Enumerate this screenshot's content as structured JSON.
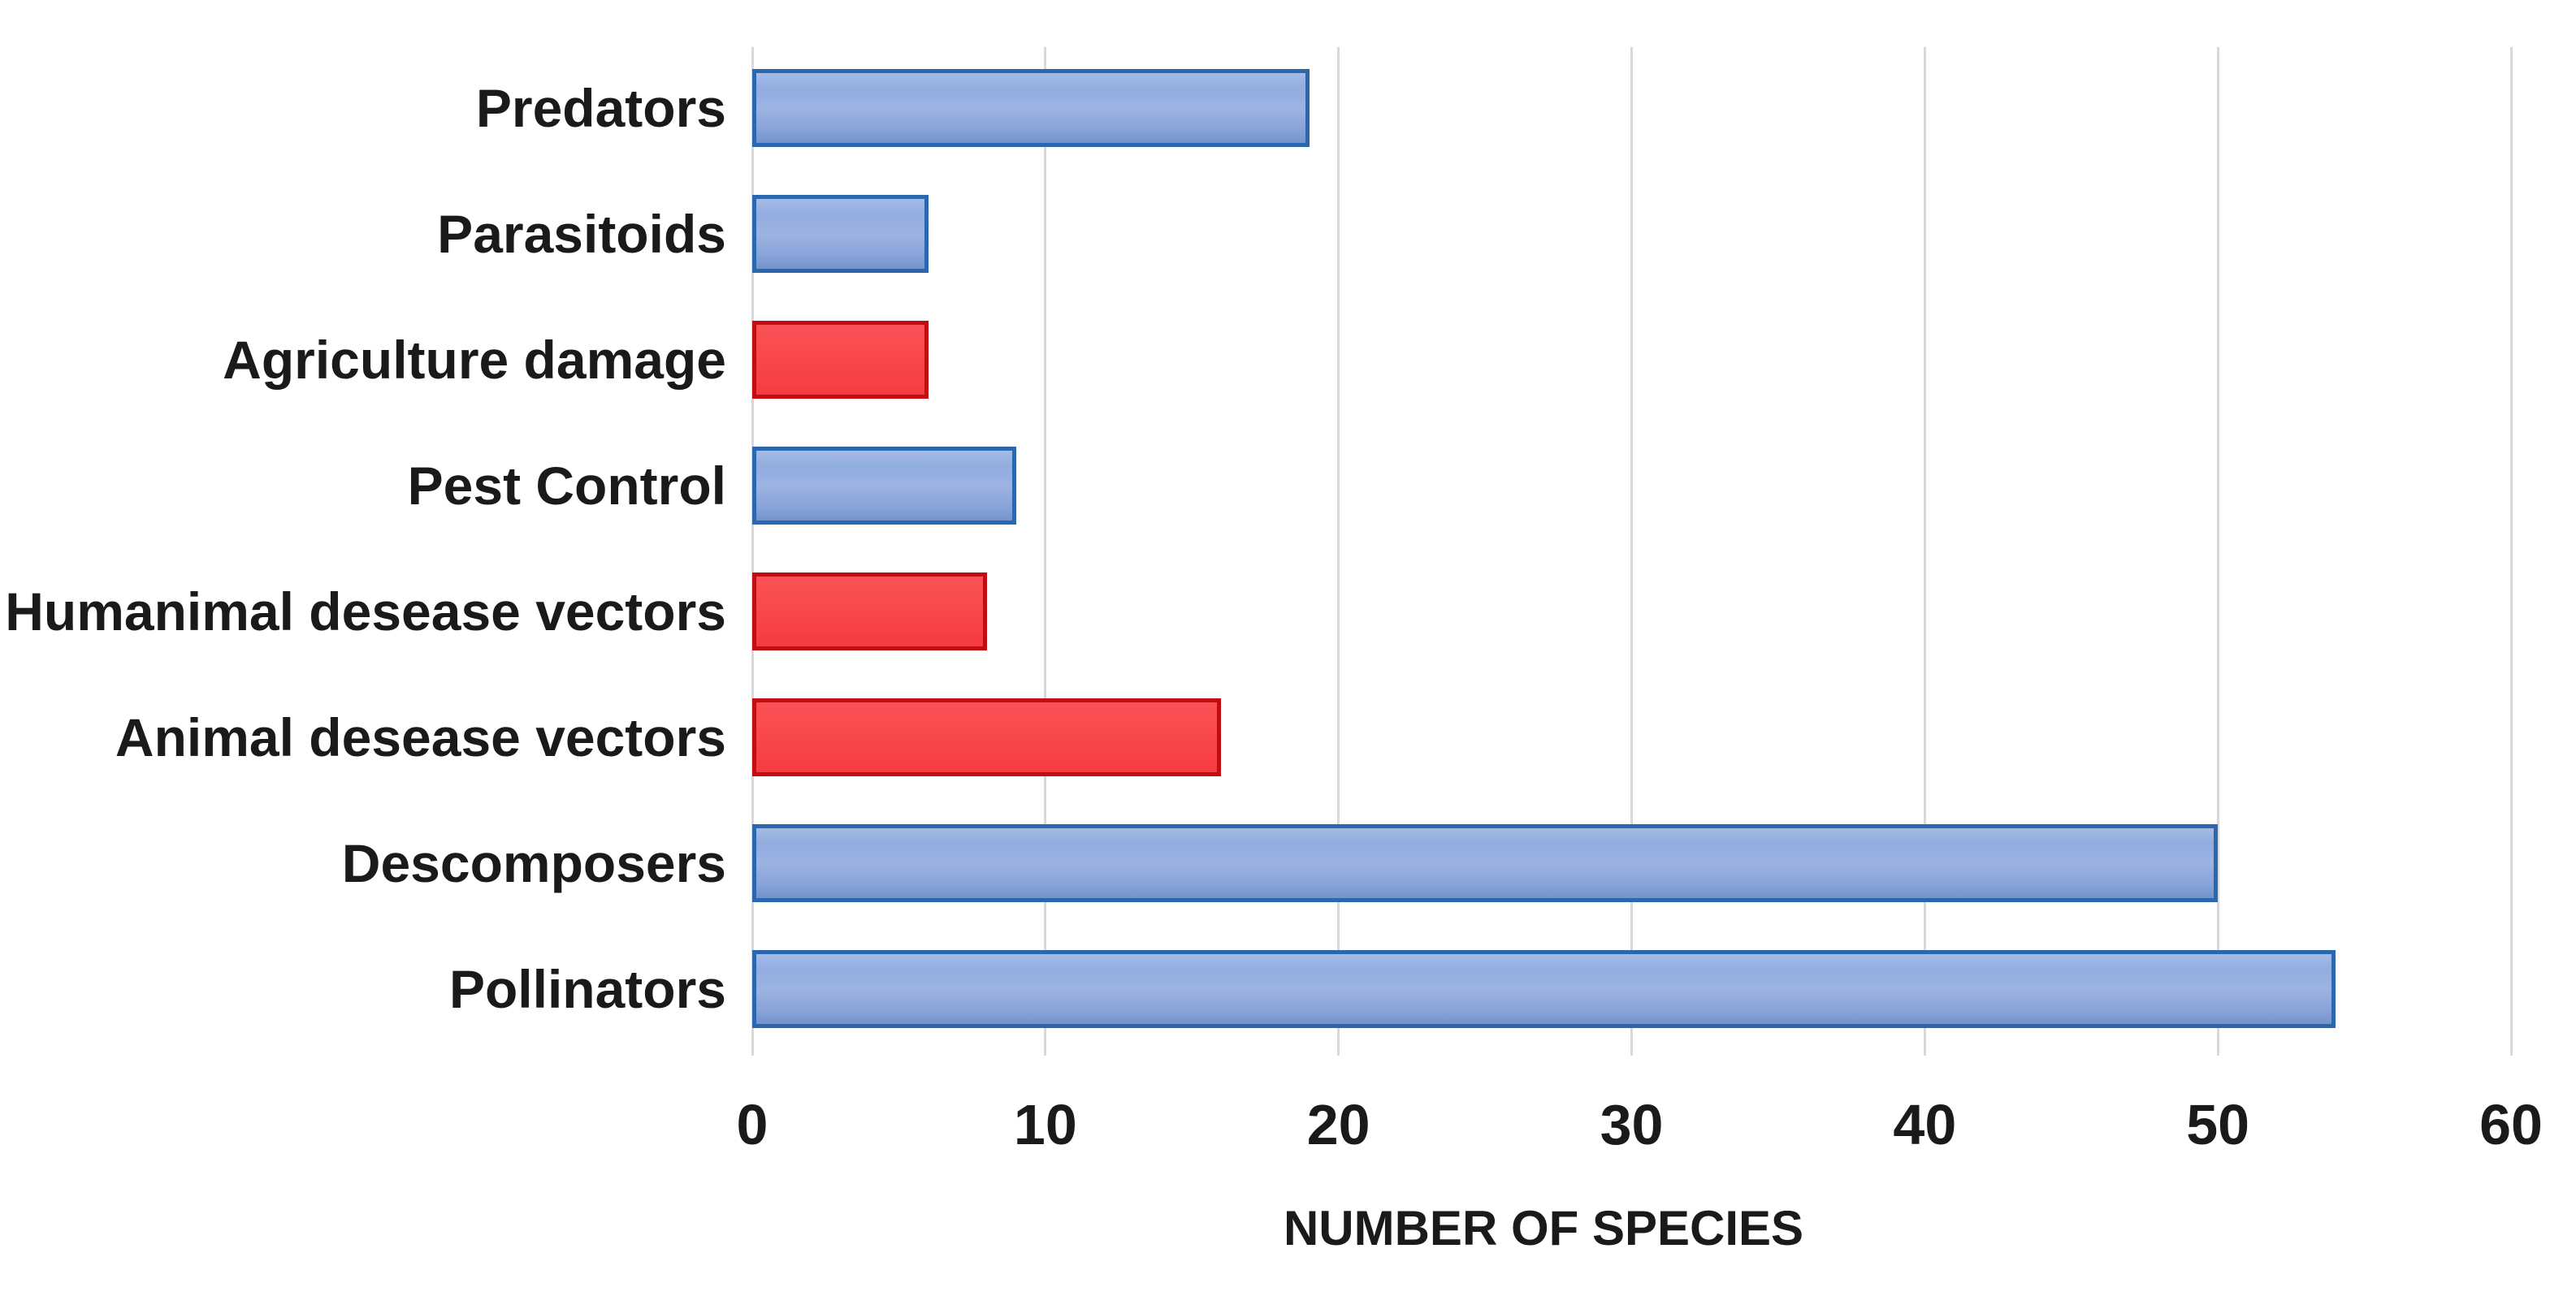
{
  "chart_data": {
    "type": "bar",
    "orientation": "horizontal",
    "xlabel": "NUMBER OF SPECIES",
    "xlim": [
      0,
      60
    ],
    "xticks": [
      0,
      10,
      20,
      30,
      40,
      50,
      60
    ],
    "grid": "vertical-gridlines",
    "legend_position": "none",
    "categories": [
      "Predators",
      "Parasitoids",
      "Agriculture damage",
      "Pest Control",
      "Humanimal desease vectors",
      "Animal desease vectors",
      "Descomposers",
      "Pollinators"
    ],
    "values": [
      19,
      6,
      6,
      9,
      8,
      16,
      50,
      54
    ],
    "bar_color_roles": [
      "blue",
      "blue",
      "red",
      "blue",
      "red",
      "red",
      "blue",
      "blue"
    ],
    "colors": {
      "blue_fill": "#8FA9DB",
      "blue_border": "#2B67AE",
      "red_fill": "#F9464B",
      "red_border": "#BF0D12",
      "gridline": "#D9D9D9",
      "label_text": "#1A1A1A"
    }
  }
}
